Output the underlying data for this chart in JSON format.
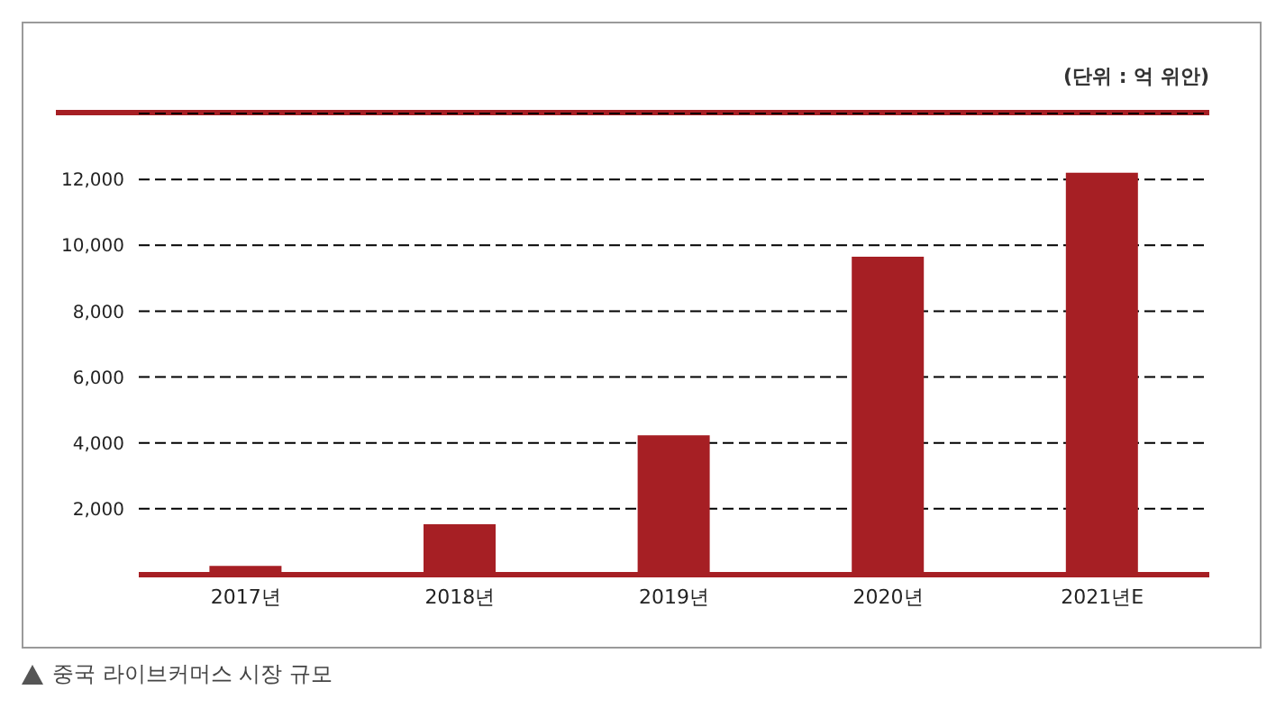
{
  "chart_data": {
    "type": "bar",
    "title": "중국 라이브커머스 시장 규모",
    "annotations": [
      "(단위 : 억 위안)"
    ],
    "categories": [
      "2017년",
      "2018년",
      "2019년",
      "2020년",
      "2021년E"
    ],
    "values": [
      270,
      1530,
      4230,
      9650,
      12200
    ],
    "color": "#a61f24",
    "ylim": [
      0,
      14000
    ],
    "yticks": [
      {
        "value": 2000,
        "label": "2,000"
      },
      {
        "value": 4000,
        "label": "4,000"
      },
      {
        "value": 6000,
        "label": "6,000"
      },
      {
        "value": 8000,
        "label": "8,000"
      },
      {
        "value": 10000,
        "label": "10,000"
      },
      {
        "value": 12000,
        "label": "12,000"
      }
    ],
    "grid": "y"
  }
}
